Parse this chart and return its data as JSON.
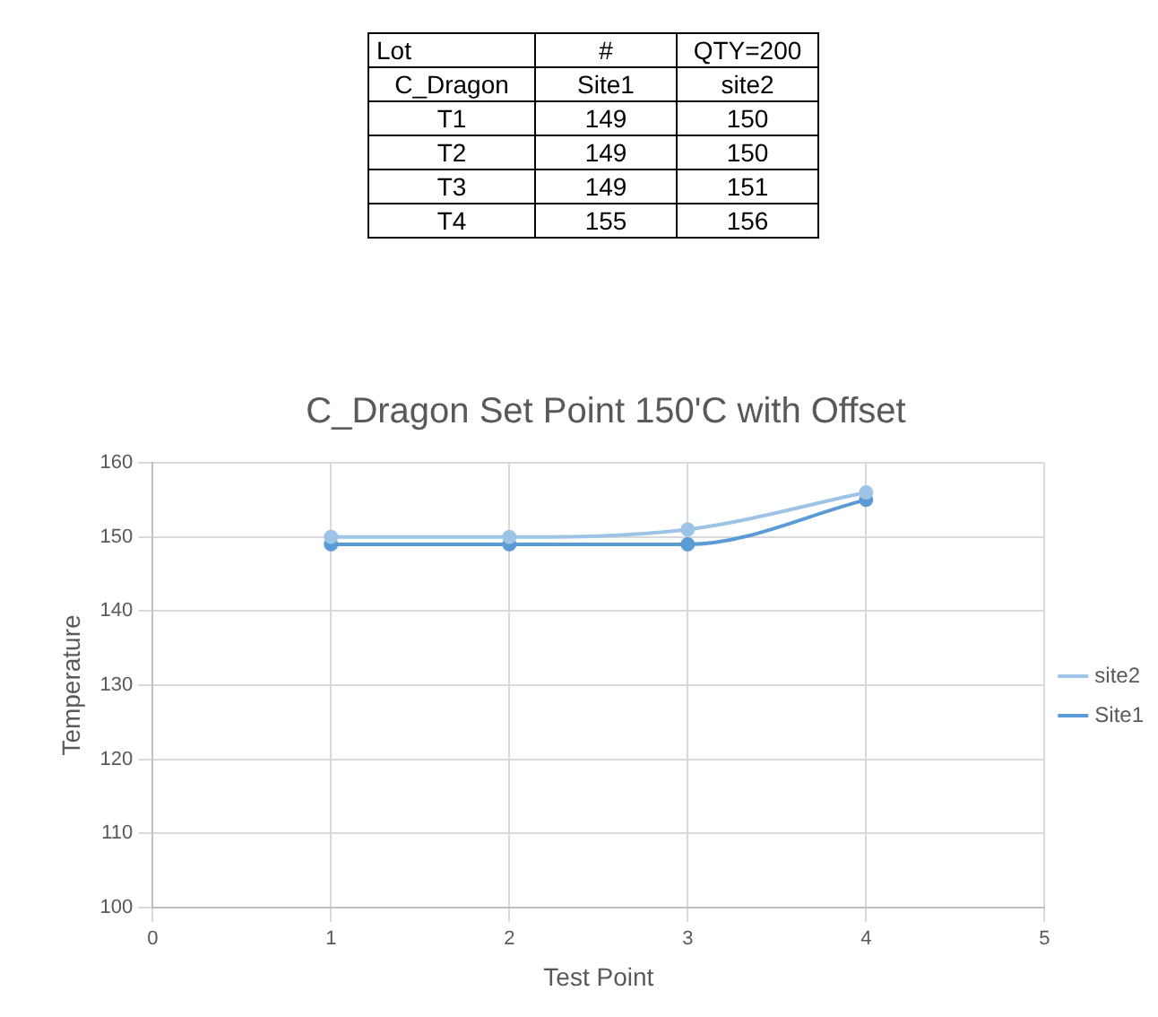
{
  "chart_data": {
    "type": "line",
    "title": "C_Dragon Set Point 150'C with Offset",
    "xlabel": "Test Point",
    "ylabel": "Temperature",
    "x": [
      1,
      2,
      3,
      4
    ],
    "series": [
      {
        "name": "Site1",
        "color": "#5b9bd5",
        "values": [
          149,
          149,
          149,
          155
        ]
      },
      {
        "name": "site2",
        "color": "#9dc3e6",
        "values": [
          150,
          150,
          151,
          156
        ]
      }
    ],
    "annotations": [
      "Lot",
      "#",
      "QTY=200",
      "C_Dragon",
      "Site1",
      "site2",
      "T1",
      "149",
      "150",
      "T2",
      "149",
      "150",
      "T3",
      "149",
      "151",
      "T4",
      "155",
      "156"
    ],
    "xlim": [
      0,
      5
    ],
    "xticks": [
      0,
      1,
      2,
      3,
      4,
      5
    ],
    "ylim": [
      100,
      160
    ],
    "yticks": [
      100,
      110,
      120,
      130,
      140,
      150,
      160
    ],
    "grid": true,
    "legend": "right",
    "marker": "circle",
    "line_style": "solid"
  }
}
